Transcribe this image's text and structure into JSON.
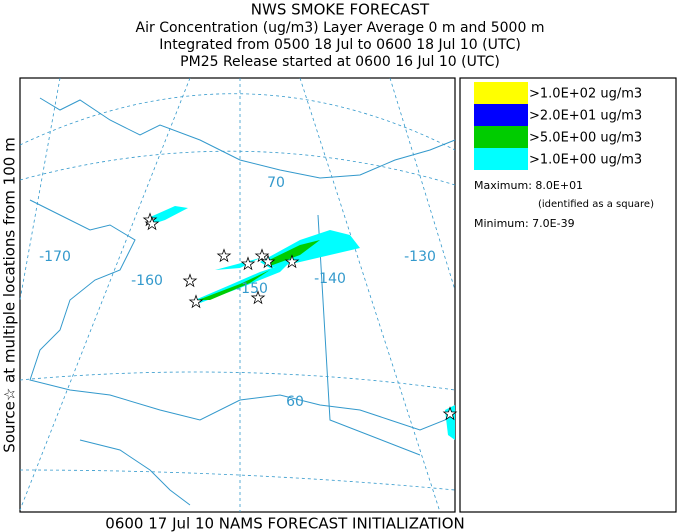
{
  "header": {
    "lines": [
      "NWS SMOKE FORECAST",
      "Air Concentration (ug/m3) Layer Average    0 m and  5000 m",
      "Integrated from 0500 18 Jul to 0600 18 Jul 10 (UTC)",
      "PM25 Release started at 0600 16 Jul 10 (UTC)"
    ]
  },
  "side_label": "Source☆ at multiple locations from  100 m",
  "footer": "0600 17 Jul 10 NAMS FORECAST INITIALIZATION",
  "map": {
    "labels": [
      "-170",
      "-160",
      "-150",
      "-140",
      "-130",
      "70",
      "60"
    ]
  },
  "legend": {
    "items": [
      {
        "label": ">1.0E+02 ug/m3",
        "color": "#ffff00"
      },
      {
        "label": ">2.0E+01 ug/m3",
        "color": "#0000ff"
      },
      {
        "label": ">5.0E+00 ug/m3",
        "color": "#00cc00"
      },
      {
        "label": ">1.0E+00 ug/m3",
        "color": "#00ffff"
      }
    ],
    "maximum": "Maximum: 8.0E+01",
    "maximum_note": "(identified as a square)",
    "minimum": "Minimum: 7.0E-39"
  }
}
